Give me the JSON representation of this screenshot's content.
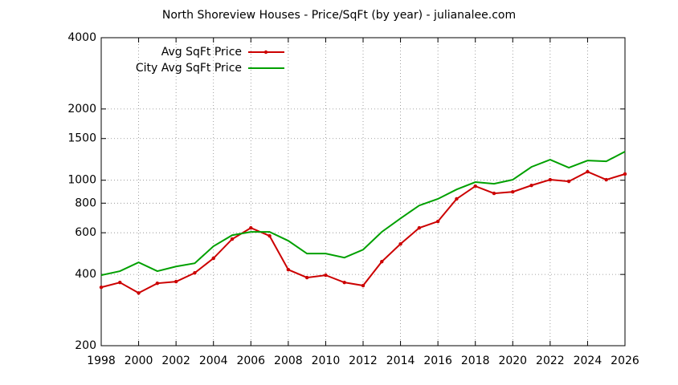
{
  "chart_data": {
    "type": "line",
    "title": "North Shoreview Houses - Price/SqFt (by year) - julianalee.com",
    "x": [
      1998,
      1999,
      2000,
      2001,
      2002,
      2003,
      2004,
      2005,
      2006,
      2007,
      2008,
      2009,
      2010,
      2011,
      2012,
      2013,
      2014,
      2015,
      2016,
      2017,
      2018,
      2019,
      2020,
      2021,
      2022,
      2023,
      2024,
      2025,
      2026
    ],
    "series": [
      {
        "name": "Avg SqFt Price",
        "color": "#cc0000",
        "markers": true,
        "values": [
          353,
          370,
          334,
          367,
          373,
          406,
          468,
          564,
          629,
          582,
          419,
          388,
          397,
          370,
          359,
          453,
          538,
          629,
          670,
          834,
          944,
          880,
          893,
          951,
          1005,
          989,
          1086,
          1005,
          1062
        ]
      },
      {
        "name": "City Avg SqFt Price",
        "color": "#00a000",
        "markers": false,
        "values": [
          397,
          413,
          450,
          413,
          432,
          446,
          526,
          586,
          605,
          605,
          555,
          490,
          490,
          471,
          509,
          605,
          690,
          782,
          834,
          914,
          982,
          966,
          1005,
          1138,
          1221,
          1130,
          1211,
          1202,
          1321
        ]
      }
    ],
    "xlim": [
      1998,
      2026
    ],
    "xticks": [
      1998,
      2000,
      2002,
      2004,
      2006,
      2008,
      2010,
      2012,
      2014,
      2016,
      2018,
      2020,
      2022,
      2024,
      2026
    ],
    "ylim": [
      200,
      4000
    ],
    "yticks": [
      200,
      400,
      600,
      800,
      1000,
      1500,
      2000,
      4000
    ],
    "log_y": true,
    "grid": true,
    "legend": "top-left"
  }
}
